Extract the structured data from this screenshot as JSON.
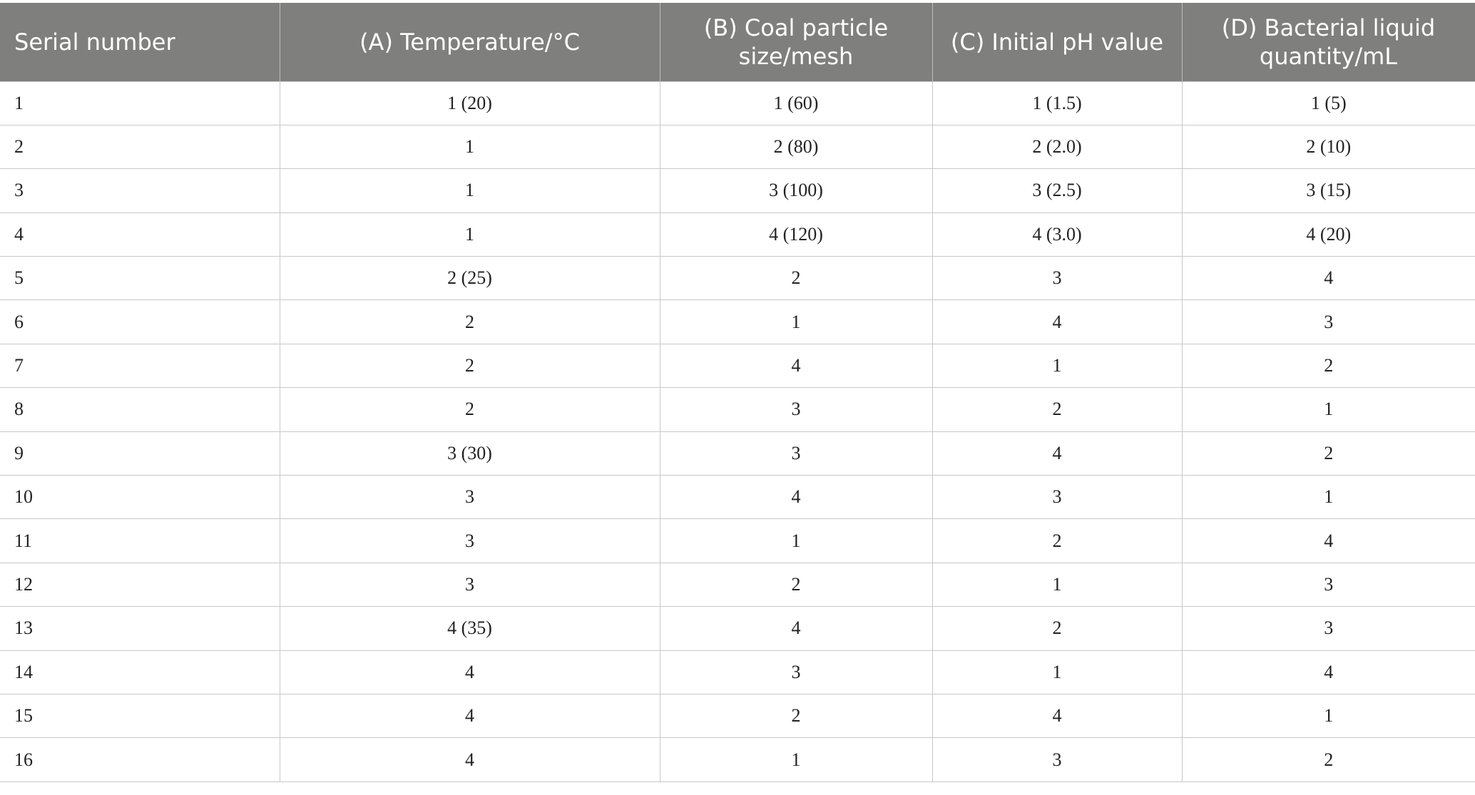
{
  "table": {
    "header": [
      "Serial number",
      "(A) Temperature/°C",
      "(B) Coal particle size/mesh",
      "(C) Initial pH value",
      "(D) Bacterial liquid quantity/mL"
    ],
    "rows": [
      [
        "1",
        "1 (20)",
        "1 (60)",
        "1 (1.5)",
        "1 (5)"
      ],
      [
        "2",
        "1",
        "2 (80)",
        "2 (2.0)",
        "2 (10)"
      ],
      [
        "3",
        "1",
        "3 (100)",
        "3 (2.5)",
        "3 (15)"
      ],
      [
        "4",
        "1",
        "4 (120)",
        "4 (3.0)",
        "4 (20)"
      ],
      [
        "5",
        "2 (25)",
        "2",
        "3",
        "4"
      ],
      [
        "6",
        "2",
        "1",
        "4",
        "3"
      ],
      [
        "7",
        "2",
        "4",
        "1",
        "2"
      ],
      [
        "8",
        "2",
        "3",
        "2",
        "1"
      ],
      [
        "9",
        "3 (30)",
        "3",
        "4",
        "2"
      ],
      [
        "10",
        "3",
        "4",
        "3",
        "1"
      ],
      [
        "11",
        "3",
        "1",
        "2",
        "4"
      ],
      [
        "12",
        "3",
        "2",
        "1",
        "3"
      ],
      [
        "13",
        "4 (35)",
        "4",
        "2",
        "3"
      ],
      [
        "14",
        "4",
        "3",
        "1",
        "4"
      ],
      [
        "15",
        "4",
        "2",
        "4",
        "1"
      ],
      [
        "16",
        "4",
        "1",
        "3",
        "2"
      ]
    ]
  }
}
